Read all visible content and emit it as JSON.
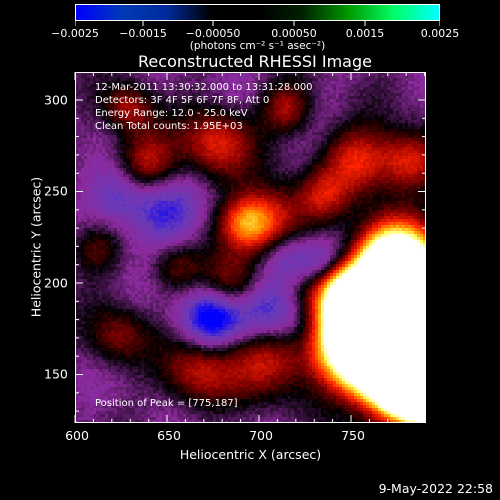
{
  "colorbar": {
    "labels": [
      "−0.0025",
      "−0.0015",
      "−0.00050",
      "0.00050",
      "0.0015",
      "0.0025"
    ],
    "units": "(photons cm⁻² s⁻¹ asec⁻²)",
    "range": [
      -0.0025,
      0.0025
    ],
    "colors": [
      "#0000ff",
      "#6a3ab8",
      "#8b2a9c",
      "#000000",
      "#8a0000",
      "#ff2200",
      "#ff9900",
      "#ffff66",
      "#ffffff"
    ]
  },
  "title": "Reconstructed RHESSI Image",
  "info": {
    "time": "12-Mar-2011 13:30:32.000 to 13:31:28.000",
    "detectors": "Detectors: 3F 4F 5F 6F 7F 8F, Att 0",
    "energy": "Energy Range: 12.0 - 25.0 keV",
    "method": "Clean     Total counts: 1.95E+03"
  },
  "peak": "Position of Peak = [775,187]",
  "x_axis": {
    "label": "Heliocentric X (arcsec)",
    "ticks": [
      "600",
      "650",
      "700",
      "750"
    ],
    "range": [
      600,
      790
    ]
  },
  "y_axis": {
    "label": "Heliocentric Y (arcsec)",
    "ticks": [
      "300",
      "250",
      "200",
      "150"
    ],
    "range": [
      120,
      310
    ]
  },
  "footer": "9-May-2022 22:58"
}
